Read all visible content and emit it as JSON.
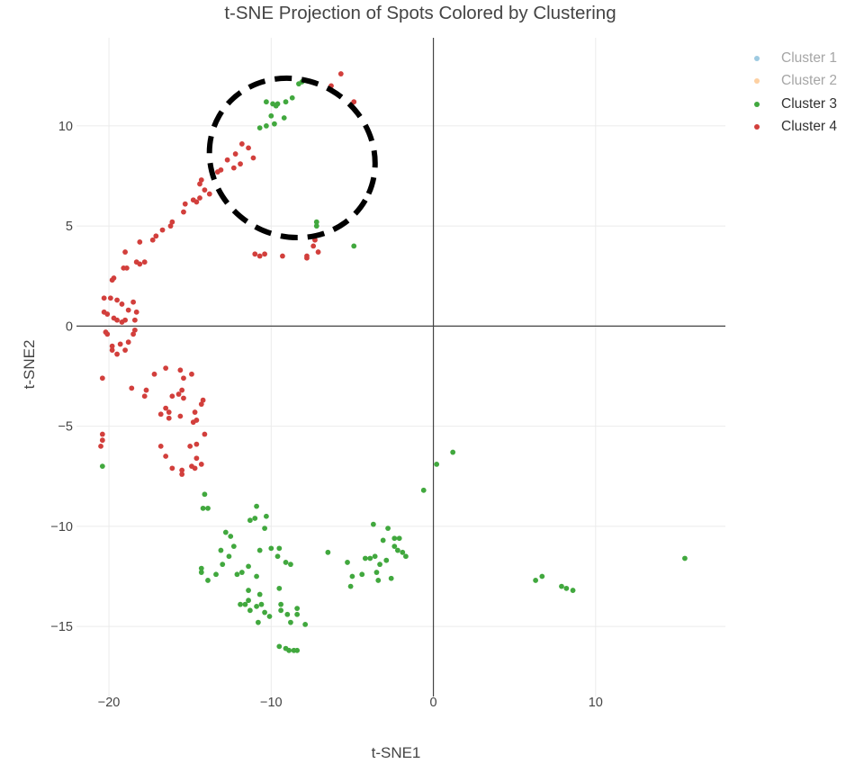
{
  "chart_data": {
    "type": "scatter",
    "title": "t-SNE Projection of Spots Colored by Clustering",
    "xlabel": "t-SNE1",
    "ylabel": "t-SNE2",
    "xlim": [
      -22,
      18
    ],
    "ylim": [
      -18.5,
      14.4
    ],
    "xticks": [
      -20,
      -10,
      0,
      10
    ],
    "yticks": [
      -15,
      -10,
      -5,
      0,
      5,
      10
    ],
    "grid": true,
    "zero_lines": true,
    "legend": {
      "position": "right",
      "items": [
        {
          "name": "Cluster 1",
          "color": "#9ecae1",
          "visible": false
        },
        {
          "name": "Cluster 2",
          "color": "#fdd0a2",
          "visible": false
        },
        {
          "name": "Cluster 3",
          "color": "#41a83e",
          "visible": true
        },
        {
          "name": "Cluster 4",
          "color": "#d23f3c",
          "visible": true
        }
      ]
    },
    "annotation": {
      "shape": "dashed-ellipse",
      "center": [
        -8.7,
        8.4
      ],
      "radii": [
        5.2,
        3.9
      ],
      "rotation_deg": 30
    },
    "series": [
      {
        "name": "Cluster 3",
        "color": "#41a83e",
        "points": [
          [
            -8.1,
            12.2
          ],
          [
            -8.3,
            12.1
          ],
          [
            -8.7,
            11.4
          ],
          [
            -9.1,
            11.2
          ],
          [
            -9.6,
            11.1
          ],
          [
            -9.7,
            11.0
          ],
          [
            -9.9,
            11.1
          ],
          [
            -10.3,
            11.2
          ],
          [
            -10.0,
            10.5
          ],
          [
            -9.2,
            10.4
          ],
          [
            -9.8,
            10.1
          ],
          [
            -10.3,
            10.0
          ],
          [
            -10.7,
            9.9
          ],
          [
            -7.2,
            5.2
          ],
          [
            -7.2,
            5.0
          ],
          [
            -4.9,
            4.0
          ],
          [
            -20.4,
            -7.0
          ],
          [
            1.2,
            -6.3
          ],
          [
            0.2,
            -6.9
          ],
          [
            -0.6,
            -8.2
          ],
          [
            -14.1,
            -8.4
          ],
          [
            -14.2,
            -9.1
          ],
          [
            -13.9,
            -9.1
          ],
          [
            -12.8,
            -10.3
          ],
          [
            -12.5,
            -10.5
          ],
          [
            -12.3,
            -11.0
          ],
          [
            -12.6,
            -11.5
          ],
          [
            -12.1,
            -12.4
          ],
          [
            -11.3,
            -9.7
          ],
          [
            -11.0,
            -9.6
          ],
          [
            -10.9,
            -9.0
          ],
          [
            -10.3,
            -9.5
          ],
          [
            -10.4,
            -10.1
          ],
          [
            -10.0,
            -11.1
          ],
          [
            -10.7,
            -11.2
          ],
          [
            -11.4,
            -12.0
          ],
          [
            -11.8,
            -12.3
          ],
          [
            -10.9,
            -12.5
          ],
          [
            -11.4,
            -13.2
          ],
          [
            -11.4,
            -13.7
          ],
          [
            -11.6,
            -13.9
          ],
          [
            -11.9,
            -13.9
          ],
          [
            -11.3,
            -14.2
          ],
          [
            -10.9,
            -14.0
          ],
          [
            -10.7,
            -13.4
          ],
          [
            -10.6,
            -13.9
          ],
          [
            -10.8,
            -14.8
          ],
          [
            -10.4,
            -14.3
          ],
          [
            -10.1,
            -14.5
          ],
          [
            -9.5,
            -13.1
          ],
          [
            -9.4,
            -13.9
          ],
          [
            -9.4,
            -14.2
          ],
          [
            -9.0,
            -14.4
          ],
          [
            -8.8,
            -14.8
          ],
          [
            -8.4,
            -14.1
          ],
          [
            -8.4,
            -14.4
          ],
          [
            -7.9,
            -14.9
          ],
          [
            -9.5,
            -11.1
          ],
          [
            -9.6,
            -11.5
          ],
          [
            -9.1,
            -11.8
          ],
          [
            -8.8,
            -11.9
          ],
          [
            -13.4,
            -12.4
          ],
          [
            -13.0,
            -11.9
          ],
          [
            -13.1,
            -11.2
          ],
          [
            -14.3,
            -12.1
          ],
          [
            -14.3,
            -12.3
          ],
          [
            -13.9,
            -12.7
          ],
          [
            -9.5,
            -16.0
          ],
          [
            -9.1,
            -16.1
          ],
          [
            -8.6,
            -16.2
          ],
          [
            -8.4,
            -16.2
          ],
          [
            -8.9,
            -16.2
          ],
          [
            -6.5,
            -11.3
          ],
          [
            -5.3,
            -11.8
          ],
          [
            -5.0,
            -12.5
          ],
          [
            -5.1,
            -13.0
          ],
          [
            -4.4,
            -12.4
          ],
          [
            -3.9,
            -11.6
          ],
          [
            -3.7,
            -9.9
          ],
          [
            -3.1,
            -10.7
          ],
          [
            -2.8,
            -10.1
          ],
          [
            -2.4,
            -10.6
          ],
          [
            -2.4,
            -11.0
          ],
          [
            -2.2,
            -11.2
          ],
          [
            -1.9,
            -11.3
          ],
          [
            -1.7,
            -11.5
          ],
          [
            -2.1,
            -10.6
          ],
          [
            -3.6,
            -11.5
          ],
          [
            -3.3,
            -11.9
          ],
          [
            -3.5,
            -12.3
          ],
          [
            -2.6,
            -12.6
          ],
          [
            -3.4,
            -12.7
          ],
          [
            -4.2,
            -11.6
          ],
          [
            -2.9,
            -11.7
          ],
          [
            6.3,
            -12.7
          ],
          [
            6.7,
            -12.5
          ],
          [
            7.9,
            -13.0
          ],
          [
            8.2,
            -13.1
          ],
          [
            8.6,
            -13.2
          ],
          [
            15.5,
            -11.6
          ]
        ]
      },
      {
        "name": "Cluster 4",
        "color": "#d23f3c",
        "points": [
          [
            -5.7,
            12.6
          ],
          [
            -6.3,
            12.0
          ],
          [
            -4.9,
            11.2
          ],
          [
            -11.8,
            9.1
          ],
          [
            -11.4,
            8.9
          ],
          [
            -12.2,
            8.6
          ],
          [
            -11.1,
            8.4
          ],
          [
            -12.7,
            8.3
          ],
          [
            -11.9,
            8.1
          ],
          [
            -12.3,
            7.9
          ],
          [
            -13.1,
            7.8
          ],
          [
            -13.3,
            7.7
          ],
          [
            -14.3,
            7.3
          ],
          [
            -14.4,
            7.1
          ],
          [
            -14.1,
            6.8
          ],
          [
            -13.8,
            6.6
          ],
          [
            -14.4,
            6.4
          ],
          [
            -14.8,
            6.3
          ],
          [
            -14.6,
            6.2
          ],
          [
            -15.3,
            6.1
          ],
          [
            -15.4,
            5.7
          ],
          [
            -16.1,
            5.2
          ],
          [
            -16.2,
            5.0
          ],
          [
            -16.7,
            4.8
          ],
          [
            -17.1,
            4.5
          ],
          [
            -17.3,
            4.3
          ],
          [
            -18.1,
            4.2
          ],
          [
            -19.0,
            3.7
          ],
          [
            -18.3,
            3.2
          ],
          [
            -18.1,
            3.1
          ],
          [
            -17.8,
            3.2
          ],
          [
            -19.1,
            2.9
          ],
          [
            -18.9,
            2.9
          ],
          [
            -19.7,
            2.4
          ],
          [
            -19.8,
            2.3
          ],
          [
            -11.0,
            3.6
          ],
          [
            -10.7,
            3.5
          ],
          [
            -10.4,
            3.6
          ],
          [
            -9.3,
            3.5
          ],
          [
            -7.8,
            3.5
          ],
          [
            -7.8,
            3.4
          ],
          [
            -7.1,
            3.7
          ],
          [
            -7.4,
            4.0
          ],
          [
            -7.3,
            4.3
          ],
          [
            -20.3,
            1.4
          ],
          [
            -19.9,
            1.4
          ],
          [
            -19.5,
            1.3
          ],
          [
            -19.2,
            1.1
          ],
          [
            -18.5,
            1.2
          ],
          [
            -18.8,
            0.8
          ],
          [
            -18.3,
            0.7
          ],
          [
            -20.1,
            0.6
          ],
          [
            -20.3,
            0.7
          ],
          [
            -19.7,
            0.4
          ],
          [
            -19.5,
            0.3
          ],
          [
            -19.2,
            0.2
          ],
          [
            -19.0,
            0.3
          ],
          [
            -18.4,
            0.3
          ],
          [
            -20.2,
            -0.3
          ],
          [
            -20.1,
            -0.4
          ],
          [
            -18.4,
            -0.2
          ],
          [
            -18.5,
            -0.4
          ],
          [
            -18.8,
            -0.8
          ],
          [
            -19.3,
            -0.9
          ],
          [
            -19.0,
            -1.2
          ],
          [
            -19.8,
            -1.0
          ],
          [
            -19.8,
            -1.2
          ],
          [
            -19.5,
            -1.4
          ],
          [
            -20.4,
            -2.6
          ],
          [
            -18.6,
            -3.1
          ],
          [
            -17.7,
            -3.2
          ],
          [
            -17.8,
            -3.5
          ],
          [
            -17.2,
            -2.4
          ],
          [
            -16.5,
            -2.1
          ],
          [
            -15.6,
            -2.2
          ],
          [
            -15.4,
            -2.6
          ],
          [
            -15.5,
            -3.2
          ],
          [
            -15.7,
            -3.4
          ],
          [
            -15.4,
            -3.6
          ],
          [
            -16.1,
            -3.5
          ],
          [
            -16.5,
            -4.1
          ],
          [
            -16.3,
            -4.6
          ],
          [
            -16.8,
            -4.4
          ],
          [
            -16.3,
            -4.3
          ],
          [
            -15.6,
            -4.5
          ],
          [
            -14.9,
            -2.4
          ],
          [
            -14.2,
            -3.7
          ],
          [
            -14.3,
            -3.9
          ],
          [
            -14.7,
            -4.3
          ],
          [
            -14.6,
            -4.7
          ],
          [
            -14.8,
            -4.8
          ],
          [
            -14.1,
            -5.4
          ],
          [
            -14.6,
            -5.9
          ],
          [
            -15.0,
            -6.0
          ],
          [
            -16.8,
            -6.0
          ],
          [
            -16.5,
            -6.5
          ],
          [
            -16.1,
            -7.1
          ],
          [
            -15.5,
            -7.2
          ],
          [
            -15.5,
            -7.4
          ],
          [
            -14.9,
            -7.0
          ],
          [
            -14.6,
            -6.6
          ],
          [
            -14.7,
            -7.1
          ],
          [
            -14.3,
            -6.9
          ],
          [
            -20.4,
            -5.4
          ],
          [
            -20.4,
            -5.7
          ],
          [
            -20.5,
            -6.0
          ]
        ]
      }
    ]
  }
}
